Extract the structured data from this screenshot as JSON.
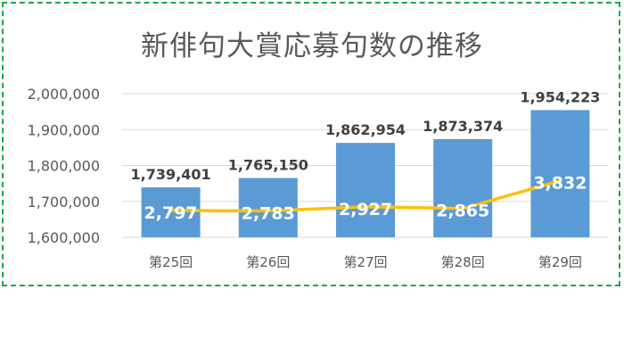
{
  "chart_data": {
    "type": "bar",
    "title": "新俳句大賞応募句数の推移",
    "categories": [
      "第25回",
      "第26回",
      "第27回",
      "第28回",
      "第29回"
    ],
    "series": [
      {
        "type": "bar",
        "values": [
          1739401,
          1765150,
          1862954,
          1873374,
          1954223
        ],
        "labels": [
          "1,739,401",
          "1,765,150",
          "1,862,954",
          "1,873,374",
          "1,954,223"
        ],
        "color": "#5b9bd5"
      },
      {
        "type": "line",
        "values": [
          2797,
          2783,
          2927,
          2865,
          3832
        ],
        "labels": [
          "2,797",
          "2,783",
          "2,927",
          "2,865",
          "3,832"
        ],
        "color": "#ffc000"
      }
    ],
    "yaxis": {
      "ylim": [
        1600000,
        2000000
      ],
      "ticks": [
        1600000,
        1700000,
        1800000,
        1900000,
        2000000
      ],
      "tick_labels": [
        "1,600,000",
        "1,700,000",
        "1,800,000",
        "1,900,000",
        "2,000,000"
      ]
    },
    "secondary_axis_hidden": true,
    "gridlines": true,
    "legend": "none"
  }
}
